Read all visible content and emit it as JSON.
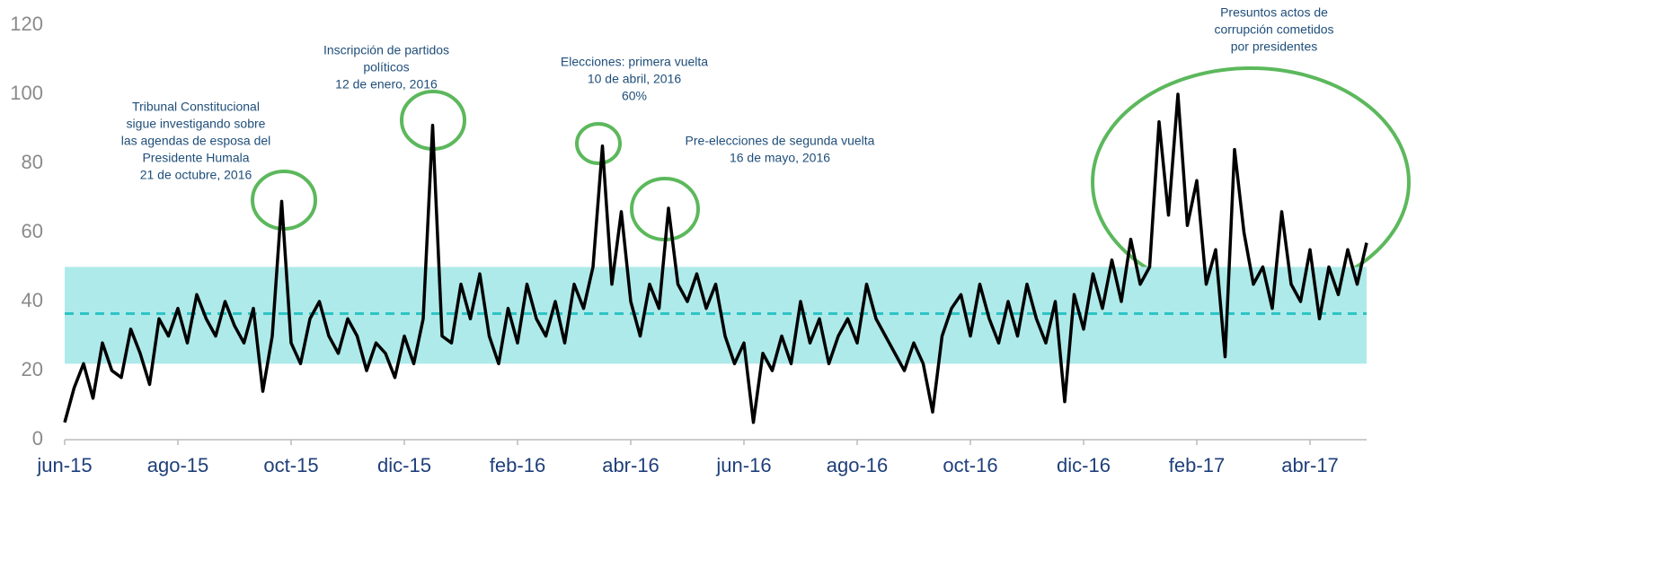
{
  "chart_data": {
    "type": "line",
    "categories": [
      "jun-15",
      null,
      null,
      null,
      null,
      null,
      null,
      null,
      null,
      null,
      null,
      null,
      "ago-15",
      null,
      null,
      null,
      null,
      null,
      null,
      null,
      null,
      null,
      null,
      null,
      "oct-15",
      null,
      null,
      null,
      null,
      null,
      null,
      null,
      null,
      null,
      null,
      null,
      "dic-15",
      null,
      null,
      null,
      null,
      null,
      null,
      null,
      null,
      null,
      null,
      null,
      "feb-16",
      null,
      null,
      null,
      null,
      null,
      null,
      null,
      null,
      null,
      null,
      null,
      "abr-16",
      null,
      null,
      null,
      null,
      null,
      null,
      null,
      null,
      null,
      null,
      null,
      "jun-16",
      null,
      null,
      null,
      null,
      null,
      null,
      null,
      null,
      null,
      null,
      null,
      "ago-16",
      null,
      null,
      null,
      null,
      null,
      null,
      null,
      null,
      null,
      null,
      null,
      "oct-16",
      null,
      null,
      null,
      null,
      null,
      null,
      null,
      null,
      null,
      null,
      null,
      "dic-16",
      null,
      null,
      null,
      null,
      null,
      null,
      null,
      null,
      null,
      null,
      null,
      "feb-17",
      null,
      null,
      null,
      null,
      null,
      null,
      null,
      null,
      null,
      null,
      null,
      "abr-17",
      null,
      null,
      null,
      null,
      null,
      null
    ],
    "values": [
      5,
      15,
      22,
      12,
      28,
      20,
      18,
      32,
      25,
      16,
      35,
      30,
      38,
      28,
      42,
      35,
      30,
      40,
      33,
      28,
      38,
      14,
      30,
      69,
      28,
      22,
      35,
      40,
      30,
      25,
      35,
      30,
      20,
      28,
      25,
      18,
      30,
      22,
      35,
      91,
      30,
      28,
      45,
      35,
      48,
      30,
      22,
      38,
      28,
      45,
      35,
      30,
      40,
      28,
      45,
      38,
      50,
      85,
      45,
      66,
      40,
      30,
      45,
      38,
      67,
      45,
      40,
      48,
      38,
      45,
      30,
      22,
      28,
      5,
      25,
      20,
      30,
      22,
      40,
      28,
      35,
      22,
      30,
      35,
      28,
      45,
      35,
      30,
      25,
      20,
      28,
      22,
      8,
      30,
      38,
      42,
      30,
      45,
      35,
      28,
      40,
      30,
      45,
      35,
      28,
      40,
      11,
      42,
      32,
      48,
      38,
      52,
      40,
      58,
      45,
      50,
      92,
      65,
      100,
      62,
      75,
      45,
      55,
      24,
      84,
      60,
      45,
      50,
      38,
      66,
      45,
      40,
      55,
      35,
      50,
      42,
      55,
      45,
      57
    ],
    "color": "#000000",
    "reference_band": [
      22,
      50
    ],
    "band_color": "#aeeaea",
    "mean_line": 36.5,
    "mean_color": "#2ec4c4",
    "ylim": [
      0,
      120
    ],
    "yticks": [
      0,
      20,
      40,
      60,
      80,
      100,
      120
    ],
    "annotations": [
      {
        "lines": [
          "Tribunal Constitucional",
          "sigue investigando sobre",
          "las agendas de esposa del",
          "Presidente Humala",
          "21 de octubre, 2016"
        ]
      },
      {
        "lines": [
          "Inscripción de partidos",
          "políticos",
          "12 de enero, 2016"
        ]
      },
      {
        "lines": [
          "Elecciones: primera vuelta",
          "10 de abril, 2016",
          "60%"
        ]
      },
      {
        "lines": [
          "Pre-elecciones de segunda vuelta",
          "16 de mayo, 2016"
        ]
      },
      {
        "lines": [
          "Presuntos actos de",
          "corrupción cometidos",
          "por presidentes"
        ]
      }
    ]
  }
}
